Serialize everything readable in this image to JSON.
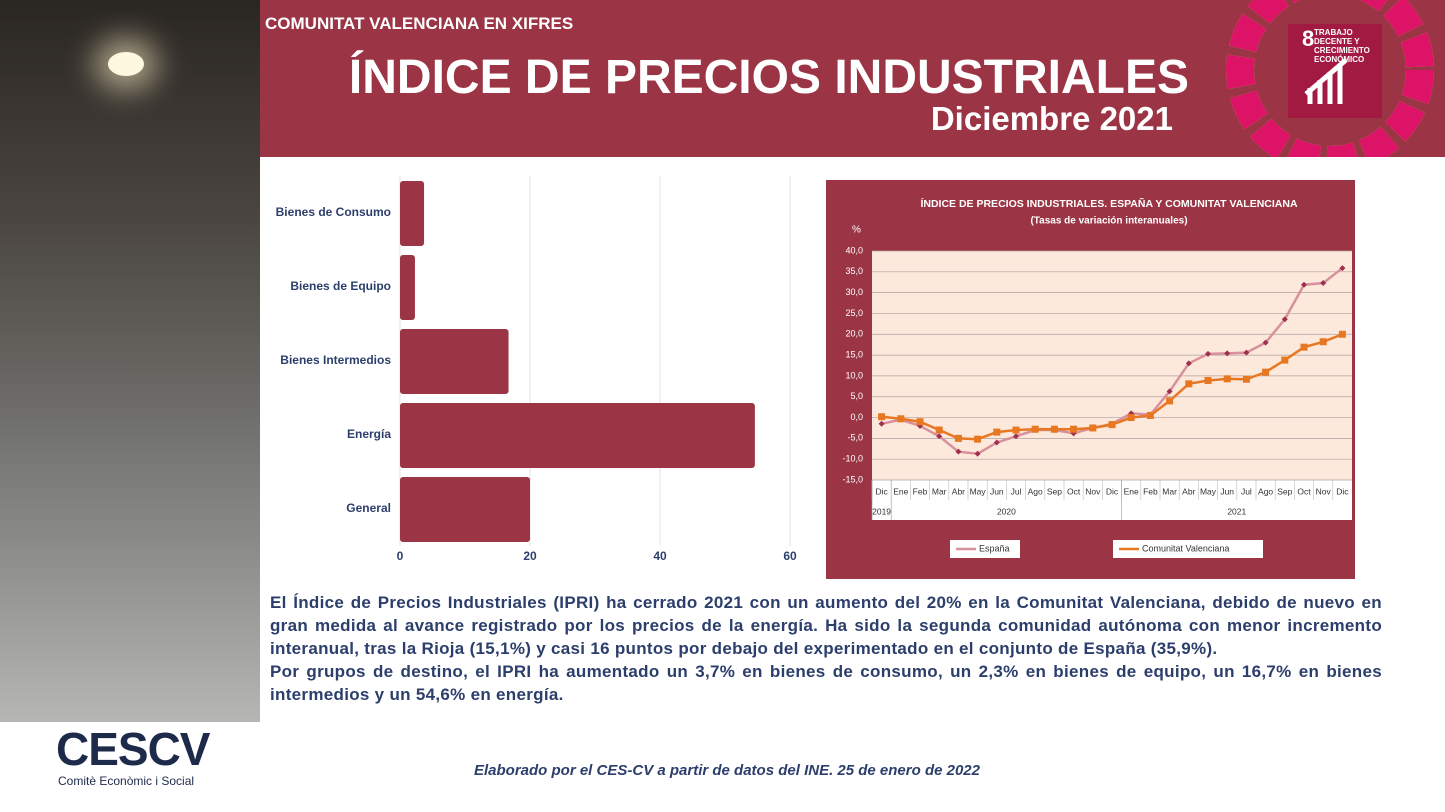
{
  "header": {
    "kicker": "COMUNITAT VALENCIANA EN XIFRES",
    "title": "ÍNDICE DE PRECIOS INDUSTRIALES",
    "date": "Diciembre 2021",
    "sdg_number": "8",
    "sdg_label": "TRABAJO DECENTE Y CRECIMIENTO ECONÓMICO"
  },
  "chart_data": [
    {
      "type": "hbar",
      "categories": [
        "Bienes de Consumo",
        "Bienes de Equipo",
        "Bienes Intermedios",
        "Energía",
        "General"
      ],
      "values": [
        3.7,
        2.3,
        16.7,
        54.6,
        20
      ],
      "color": "#9b3545",
      "xlim": [
        0,
        60
      ],
      "xticks": [
        0,
        20,
        40,
        60
      ],
      "grid": true
    },
    {
      "type": "line",
      "title": "ÍNDICE DE PRECIOS INDUSTRIALES. ESPAÑA Y COMUNITAT VALENCIANA",
      "subtitle": "(Tasas de variación interanuales)",
      "ylabel": "%",
      "categories": [
        "Dic",
        "Ene",
        "Feb",
        "Mar",
        "Abr",
        "May",
        "Jun",
        "Jul",
        "Ago",
        "Sep",
        "Oct",
        "Nov",
        "Dic",
        "Ene",
        "Feb",
        "Mar",
        "Abr",
        "May",
        "Jun",
        "Jul",
        "Ago",
        "Sep",
        "Oct",
        "Nov",
        "Dic"
      ],
      "x_groups": [
        "2019",
        "2020",
        "2021"
      ],
      "series": [
        {
          "name": "España",
          "color": "#d7909c",
          "marker": "diamond",
          "values": [
            -1.5,
            -0.5,
            -2,
            -4.5,
            -8.2,
            -8.7,
            -6,
            -4.5,
            -3,
            -3,
            -3.8,
            -2.5,
            -1.5,
            1,
            0.7,
            6.3,
            13,
            15.3,
            15.4,
            15.6,
            18,
            23.6,
            31.9,
            32.3,
            35.9
          ]
        },
        {
          "name": "Comunitat Valenciana",
          "color": "#e87722",
          "marker": "square",
          "values": [
            0.2,
            -0.3,
            -1,
            -3,
            -5,
            -5.2,
            -3.5,
            -3,
            -2.8,
            -2.8,
            -2.8,
            -2.5,
            -1.7,
            0,
            0.5,
            4,
            8.1,
            8.9,
            9.3,
            9.2,
            10.9,
            13.8,
            16.9,
            18.2,
            20
          ]
        }
      ],
      "ylim": [
        -15,
        40
      ],
      "yticks": [
        {
          "value": -15,
          "label": "-15,0"
        },
        {
          "value": -10,
          "label": "-10,0"
        },
        {
          "value": -5,
          "label": "-5,0"
        },
        {
          "value": 0,
          "label": "0,0"
        },
        {
          "value": 5,
          "label": "5,0"
        },
        {
          "value": 10,
          "label": "10,0"
        },
        {
          "value": 15,
          "label": "15,0"
        },
        {
          "value": 20,
          "label": "20,0"
        },
        {
          "value": 25,
          "label": "25,0"
        },
        {
          "value": 30,
          "label": "30,0"
        },
        {
          "value": 35,
          "label": "35,0"
        },
        {
          "value": 40,
          "label": "40,0"
        }
      ],
      "grid": true,
      "legend": "bottom"
    }
  ],
  "text": {
    "paragraphs": [
      "El Índice de Precios Industriales (IPRI) ha cerrado 2021 con un aumento del 20% en la Comunitat Valenciana, debido de nuevo en gran medida al avance registrado por los precios de la energía. Ha sido la segunda comunidad autónoma con menor incremento interanual, tras la Rioja (15,1%) y casi 16 puntos por debajo del experimentado en el conjunto de España (35,9%).",
      "Por grupos de destino, el IPRI ha aumentado un 3,7% en bienes de consumo, un 2,3% en bienes de equipo,  un 16,7% en bienes intermedios y un 54,6% en energía."
    ]
  },
  "logo": {
    "name": "CESCV",
    "subtitle": "Comitè Econòmic i Social"
  },
  "footer": "Elaborado por el CES-CV a partir de datos del INE. 25 de enero de 2022"
}
